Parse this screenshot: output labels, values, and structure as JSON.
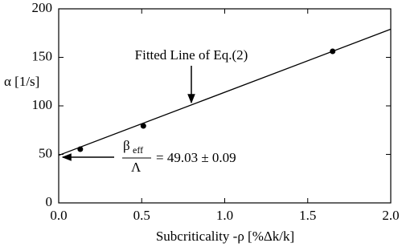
{
  "chart_data": {
    "type": "scatter",
    "xlabel": "Subcriticality -ρ [%Δk/k]",
    "ylabel": "α [1/s]",
    "xlim": [
      0,
      2.0
    ],
    "ylim": [
      0,
      200
    ],
    "xticks": [
      {
        "value": 0,
        "label": "0.0"
      },
      0.5,
      {
        "value": 1,
        "label": "1.0"
      },
      1.5,
      {
        "value": 2,
        "label": "2.0"
      }
    ],
    "yticks": [
      0,
      50,
      100,
      150,
      200
    ],
    "series": [
      {
        "mode": "markers",
        "color": "#000000",
        "x": [
          0.13,
          0.51,
          1.65
        ],
        "values": [
          55.4,
          79.3,
          156.2
        ]
      },
      {
        "mode": "line",
        "color": "#000000",
        "x": [
          0,
          2.0
        ],
        "values": [
          49.03,
          179
        ]
      }
    ],
    "annotations": {
      "fitted_line": "Fitted Line of Eq.(2)",
      "beta": "β",
      "beta_sub": "eff",
      "lambda": "Λ",
      "result": "= 49.03 ± 0.09"
    }
  }
}
